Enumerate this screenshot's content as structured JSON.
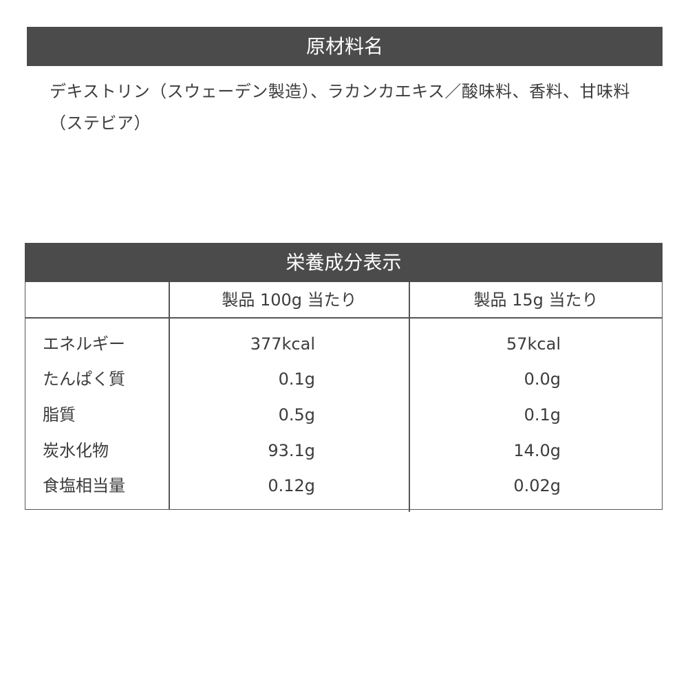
{
  "ingredients": {
    "title": "原材料名",
    "text": "デキストリン（スウェーデン製造）、ラカンカエキス／酸味料、香料、甘味料（ステビア）"
  },
  "nutrition": {
    "title": "栄養成分表示",
    "columns": [
      "",
      "製品 100g 当たり",
      "製品 15g 当たり"
    ],
    "rows": [
      {
        "label": "エネルギー",
        "per100g": "377kcal",
        "per15g": "57kcal"
      },
      {
        "label": "たんぱく質",
        "per100g": "0.1g",
        "per15g": "0.0g"
      },
      {
        "label": "脂質",
        "per100g": "0.5g",
        "per15g": "0.1g"
      },
      {
        "label": "炭水化物",
        "per100g": "93.1g",
        "per15g": "14.0g"
      },
      {
        "label": "食塩相当量",
        "per100g": "0.12g",
        "per15g": "0.02g"
      }
    ]
  },
  "colors": {
    "header_bg": "#4b4b4b",
    "header_text": "#ffffff",
    "text": "#3c3c3c"
  }
}
